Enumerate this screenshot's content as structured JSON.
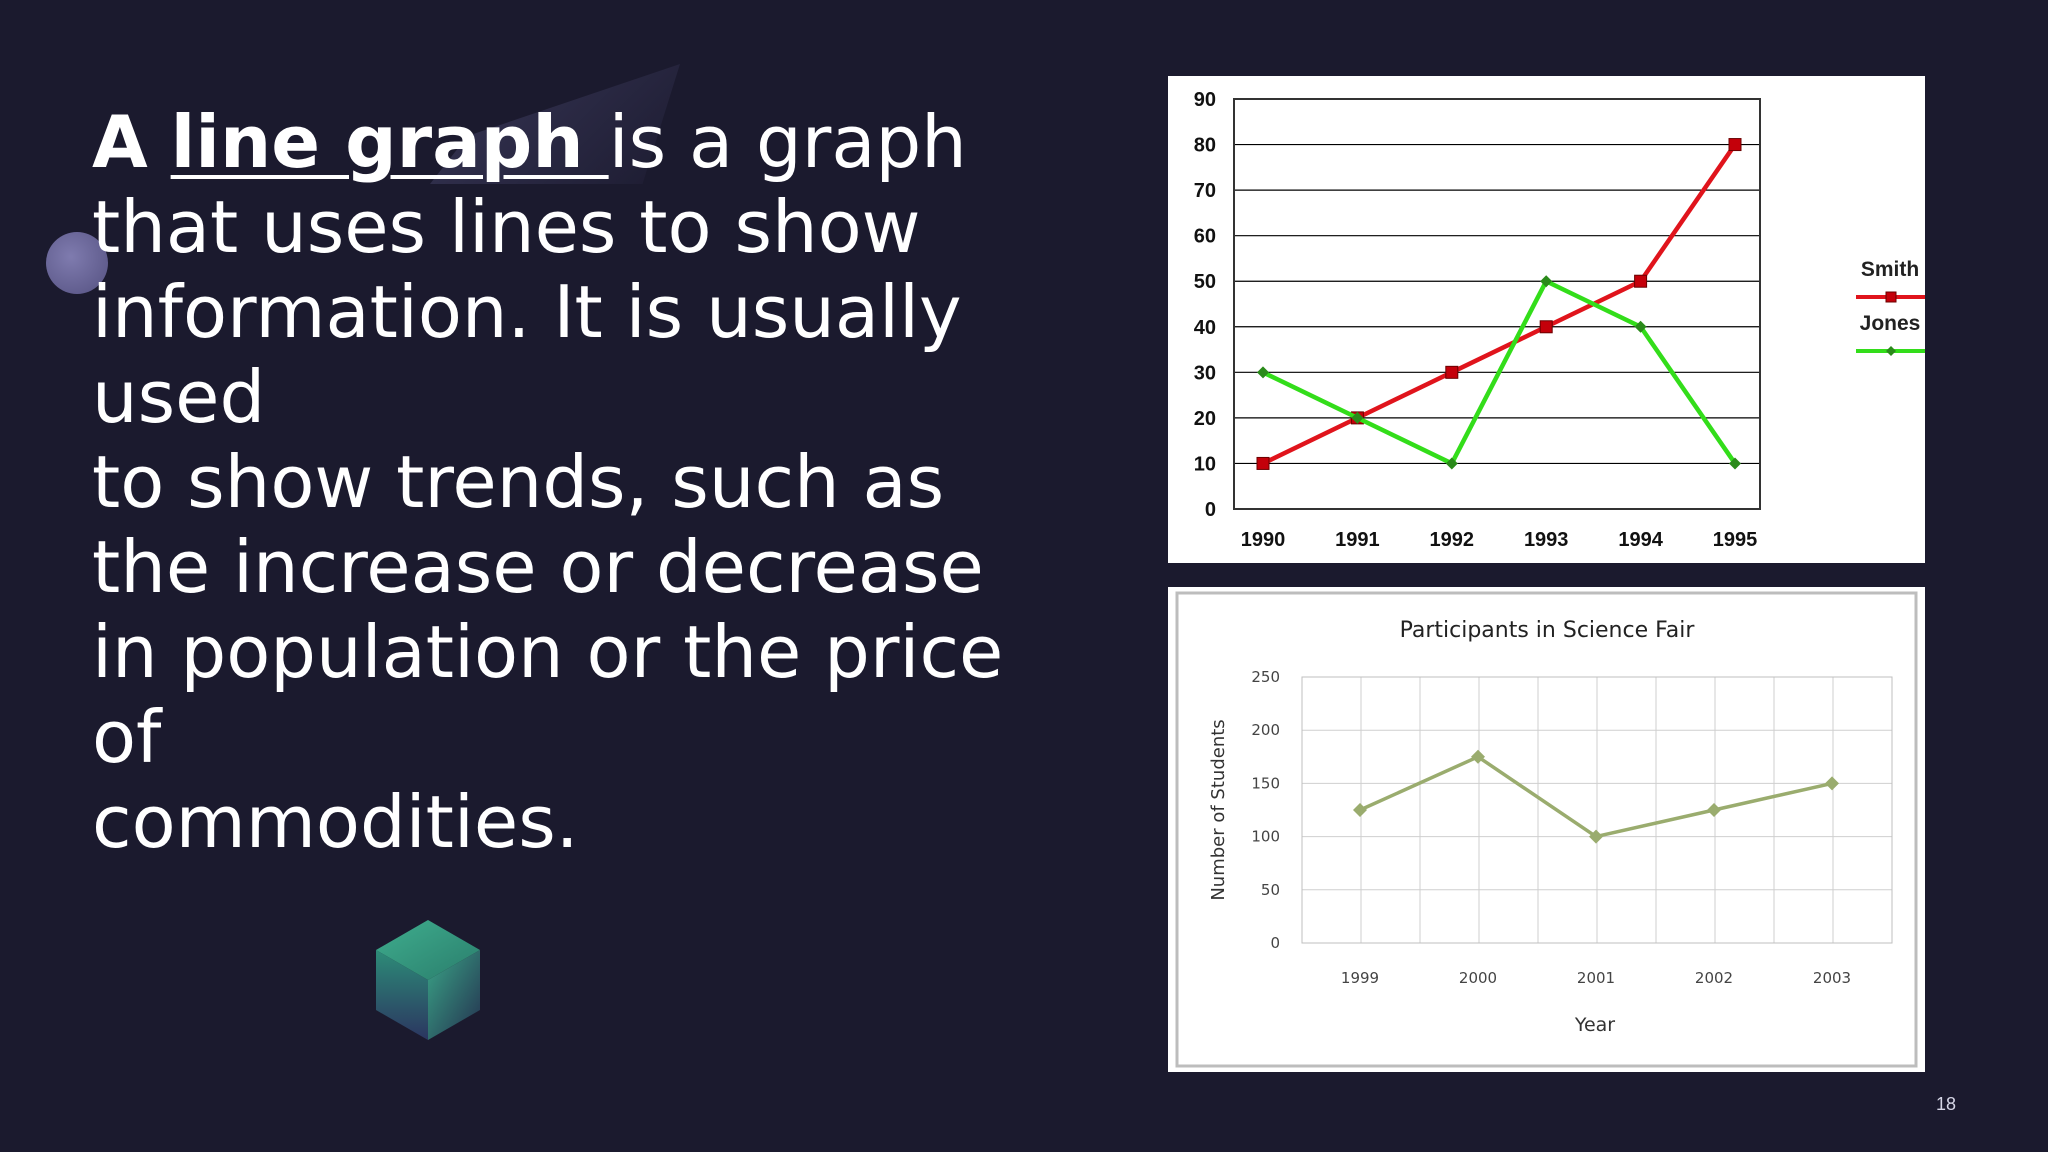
{
  "slide": {
    "text": {
      "article": "A",
      "term": "line graph ",
      "rest": "is a graph that uses lines to show information. It is usually used",
      "line2": "to show trends, such as the increase or decrease in population or the price of",
      "line3": "commodities."
    },
    "slide_number": "18",
    "colors": {
      "background": "#1b1a2e",
      "smith": "#e0141c",
      "jones": "#33dd1a",
      "participants": "#9aac6e"
    }
  },
  "chart_data": [
    {
      "type": "line",
      "title": "",
      "xlabel": "",
      "ylabel": "",
      "x": [
        "1990",
        "1991",
        "1992",
        "1993",
        "1994",
        "1995"
      ],
      "ylim": [
        0,
        90
      ],
      "yticks": [
        "0",
        "10",
        "20",
        "30",
        "40",
        "50",
        "60",
        "70",
        "80",
        "90"
      ],
      "grid": "horizontal",
      "legend": "right",
      "series": [
        {
          "name": "Smith",
          "values": [
            10,
            20,
            30,
            40,
            50,
            80
          ],
          "color": "#e0141c",
          "marker": "square"
        },
        {
          "name": "Jones",
          "values": [
            30,
            20,
            10,
            50,
            40,
            10
          ],
          "color": "#33dd1a",
          "marker": "diamond"
        }
      ]
    },
    {
      "type": "line",
      "title": "Participants in Science Fair",
      "xlabel": "Year",
      "ylabel": "Number of Students",
      "x": [
        "1999",
        "2000",
        "2001",
        "2002",
        "2003"
      ],
      "ylim": [
        0,
        250
      ],
      "yticks": [
        "0",
        "50",
        "100",
        "150",
        "200",
        "250"
      ],
      "grid": "both",
      "legend": "none",
      "series": [
        {
          "values": [
            125,
            175,
            100,
            125,
            150
          ],
          "color": "#9aac6e",
          "marker": "diamond"
        }
      ]
    }
  ]
}
